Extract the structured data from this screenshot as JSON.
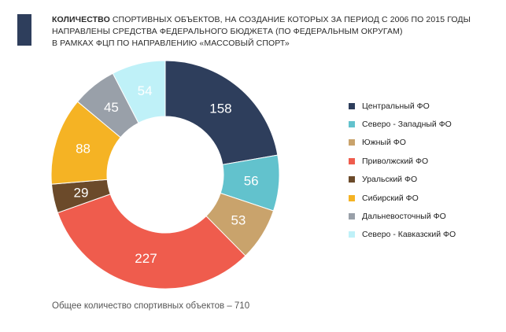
{
  "header": {
    "title_bold": "КОЛИЧЕСТВО",
    "title_line1": "СПОРТИВНЫХ ОБЪЕКТОВ, НА СОЗДАНИЕ КОТОРЫХ ЗА ПЕРИОД С 2006 ПО 2015 ГОДЫ",
    "title_line2": "НАПРАВЛЕНЫ СРЕДСТВА ФЕДЕРАЛЬНОГО БЮДЖЕТА (ПО ФЕДЕРАЛЬНЫМ ОКРУГАМ)",
    "title_line3": "В РАМКАХ ФЦП ПО НАПРАВЛЕНИЮ «МАССОВЫЙ СПОРТ»",
    "accent_color": "#2e3e5c"
  },
  "footer": {
    "total_text": "Общее количество спортивных объектов – 710"
  },
  "chart_data": {
    "type": "pie",
    "donut": true,
    "legend_position": "right",
    "categories": [
      "Центральный ФО",
      "Северо - Западный ФО",
      "Южный ФО",
      "Приволжский ФО",
      "Уральский ФО",
      "Сибирский ФО",
      "Дальневосточный ФО",
      "Северо - Кавказский ФО"
    ],
    "values": [
      158,
      56,
      53,
      227,
      29,
      88,
      45,
      54
    ],
    "colors": [
      "#2e3e5c",
      "#62c2cd",
      "#c9a36c",
      "#ef5c4d",
      "#6b4a2a",
      "#f5b324",
      "#99a0a9",
      "#bff1f8"
    ]
  }
}
